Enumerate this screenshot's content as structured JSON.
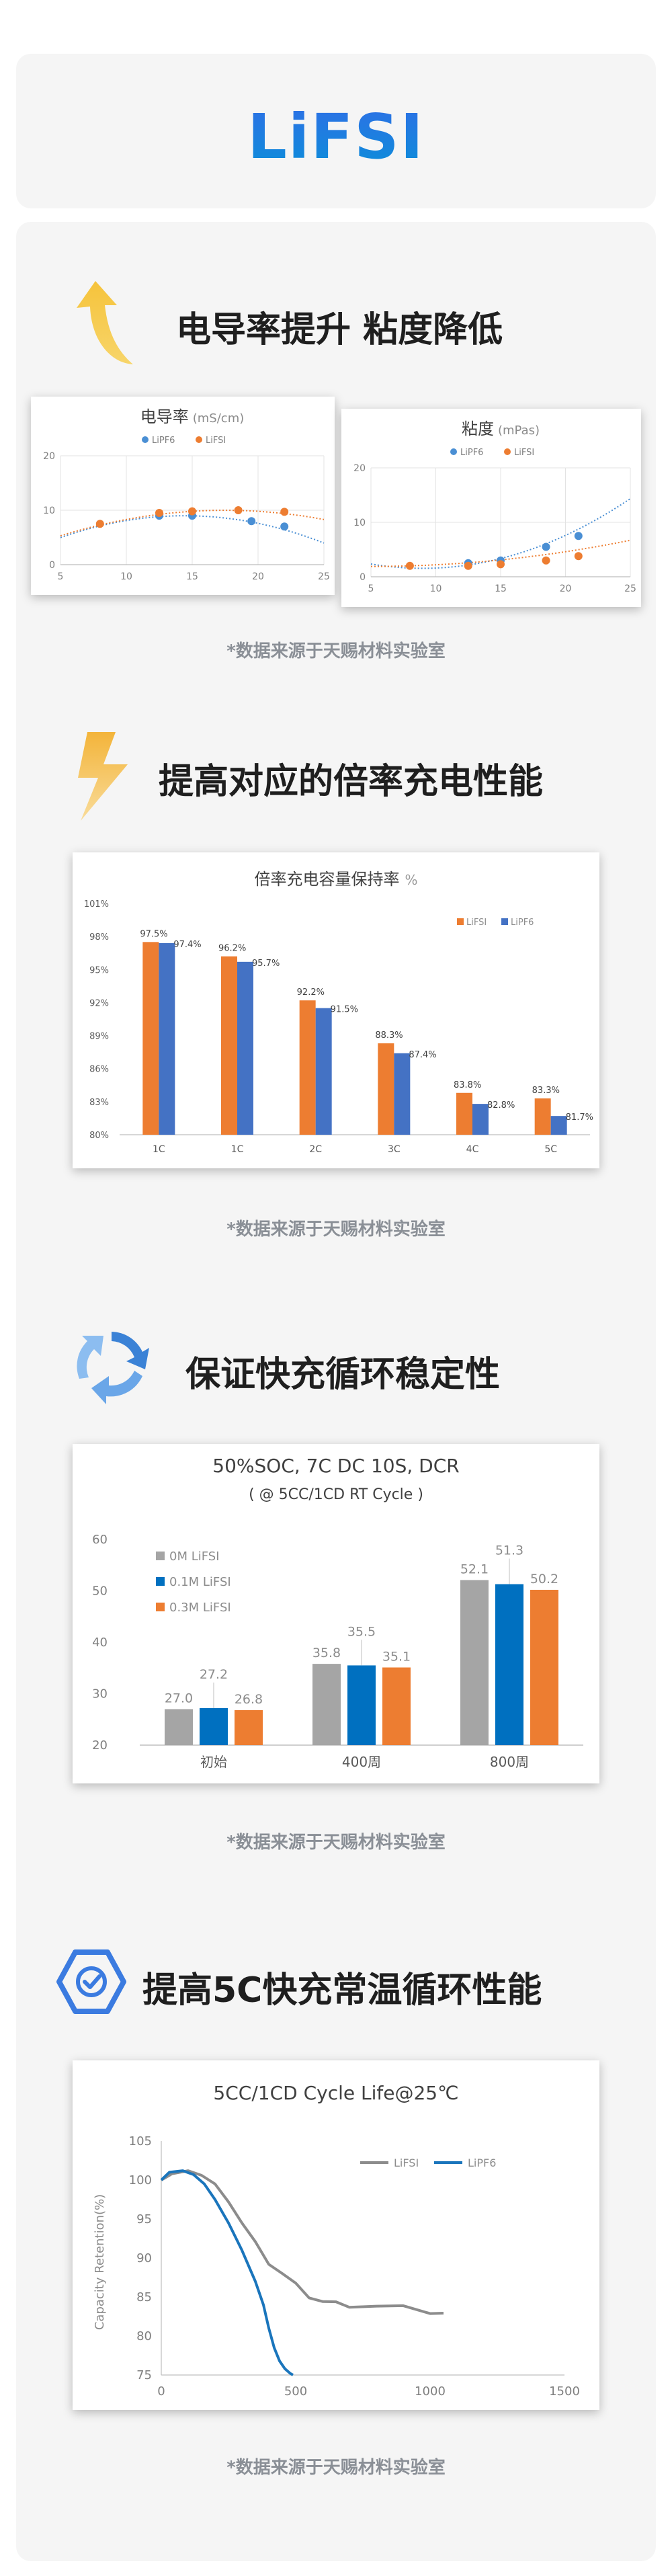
{
  "hero": {
    "title": "LiFSI"
  },
  "source_note": "*数据来源于天赐材料实验室",
  "sections": [
    {
      "title": "电导率提升 粘度降低",
      "icon": "arrow-up-icon"
    },
    {
      "title": "提高对应的倍率充电性能",
      "icon": "lightning-icon"
    },
    {
      "title": "保证快充循环稳定性",
      "icon": "recycle-arrows-icon"
    },
    {
      "title": "提高5C快充常温循环性能",
      "icon": "shield-check-icon"
    }
  ],
  "colors": {
    "lipf6": "#4a8fd4",
    "lifsi": "#ed7d31",
    "blue_bar": "#4472c4",
    "gray": "#a5a5a5",
    "deep_blue": "#0070c0",
    "line_gray": "#8c8c8c",
    "line_blue": "#1a75bc"
  },
  "chart_data": [
    {
      "type": "scatter",
      "title": "电导率",
      "title_unit": "(mS/cm)",
      "xlim": [
        5,
        25
      ],
      "ylim": [
        0,
        20
      ],
      "xticks": [
        5,
        10,
        15,
        20,
        25
      ],
      "yticks": [
        0,
        10,
        20
      ],
      "legend": [
        "LiPF6",
        "LiFSI"
      ],
      "series": [
        {
          "name": "LiPF6",
          "x": [
            12.5,
            15,
            19.5,
            22
          ],
          "y": [
            9.0,
            9.0,
            8.0,
            7.0
          ]
        },
        {
          "name": "LiFSI",
          "x": [
            8,
            12.5,
            15,
            18.5,
            22
          ],
          "y": [
            7.5,
            9.5,
            9.8,
            10.0,
            9.7
          ]
        }
      ]
    },
    {
      "type": "scatter",
      "title": "粘度",
      "title_unit": "(mPas)",
      "xlim": [
        5,
        25
      ],
      "ylim": [
        0,
        20
      ],
      "xticks": [
        5,
        10,
        15,
        20,
        25
      ],
      "yticks": [
        0,
        10,
        20
      ],
      "legend": [
        "LiPF6",
        "LiFSI"
      ],
      "series": [
        {
          "name": "LiPF6",
          "x": [
            12.5,
            15,
            18.5,
            21
          ],
          "y": [
            2.5,
            3.0,
            5.5,
            7.5
          ]
        },
        {
          "name": "LiFSI",
          "x": [
            8,
            12.5,
            15,
            18.5,
            21
          ],
          "y": [
            2.0,
            2.0,
            2.3,
            3.0,
            3.8
          ]
        }
      ]
    },
    {
      "type": "bar",
      "title": "倍率充电容量保持率",
      "title_unit": "%",
      "categories": [
        "1C",
        "1C",
        "2C",
        "3C",
        "4C",
        "5C"
      ],
      "yticks": [
        "80%",
        "83%",
        "86%",
        "89%",
        "92%",
        "95%",
        "98%",
        "101%"
      ],
      "ylim": [
        80,
        101
      ],
      "legend": [
        "LiFSI",
        "LiPF6"
      ],
      "series": [
        {
          "name": "LiFSI",
          "values": [
            97.5,
            96.2,
            92.2,
            88.3,
            83.8,
            83.3
          ],
          "labels": [
            "97.5%",
            "96.2%",
            "92.2%",
            "88.3%",
            "83.8%",
            "83.3%"
          ]
        },
        {
          "name": "LiPF6",
          "values": [
            97.4,
            95.7,
            91.5,
            87.4,
            82.8,
            81.7
          ],
          "labels": [
            "97.4%",
            "95.7%",
            "91.5%",
            "87.4%",
            "82.8%",
            "81.7%"
          ]
        }
      ]
    },
    {
      "type": "bar",
      "title": "50%SOC, 7C DC 10S, DCR",
      "subtitle": "( @ 5CC/1CD RT Cycle )",
      "categories": [
        "初始",
        "400周",
        "800周"
      ],
      "ylim": [
        20,
        60
      ],
      "yticks": [
        20,
        30,
        40,
        50,
        60
      ],
      "legend": [
        "0M LiFSI",
        "0.1M LiFSI",
        "0.3M LiFSI"
      ],
      "series": [
        {
          "name": "0M LiFSI",
          "values": [
            27.0,
            35.8,
            52.1
          ],
          "labels": [
            "27.0",
            "35.8",
            "52.1"
          ]
        },
        {
          "name": "0.1M LiFSI",
          "values": [
            27.2,
            35.5,
            51.3
          ],
          "labels": [
            "27.2",
            "35.5",
            "51.3"
          ]
        },
        {
          "name": "0.3M LiFSI",
          "values": [
            26.8,
            35.1,
            50.2
          ],
          "labels": [
            "26.8",
            "35.1",
            "50.2"
          ]
        }
      ]
    },
    {
      "type": "line",
      "title": "5CC/1CD Cycle Life@25℃",
      "ylabel": "Capacity Retention(%)",
      "xlim": [
        0,
        1500
      ],
      "ylim": [
        75,
        105
      ],
      "xticks": [
        0,
        500,
        1000,
        1500
      ],
      "yticks": [
        75,
        80,
        85,
        90,
        95,
        100,
        105
      ],
      "legend": [
        "LiFSI",
        "LiPF6"
      ],
      "series": [
        {
          "name": "LiFSI",
          "x": [
            0,
            40,
            100,
            150,
            200,
            250,
            300,
            350,
            400,
            450,
            500,
            550,
            600,
            650,
            700,
            800,
            900,
            1000,
            1050
          ],
          "y": [
            100,
            100.8,
            101.2,
            100.6,
            99.5,
            97.2,
            94.5,
            91.8,
            89.5,
            88.0,
            86.5,
            85.2,
            84.4,
            84.1,
            84.0,
            83.8,
            83.6,
            83.2,
            82.9
          ]
        },
        {
          "name": "LiPF6",
          "x": [
            0,
            30,
            80,
            120,
            160,
            200,
            250,
            300,
            350,
            380,
            400,
            420,
            440,
            460,
            480,
            490
          ],
          "y": [
            100,
            101.0,
            101.2,
            100.7,
            99.5,
            97.5,
            94.5,
            91.0,
            87.0,
            84.0,
            81.0,
            78.5,
            76.8,
            75.8,
            75.2,
            75.0
          ]
        }
      ]
    }
  ]
}
